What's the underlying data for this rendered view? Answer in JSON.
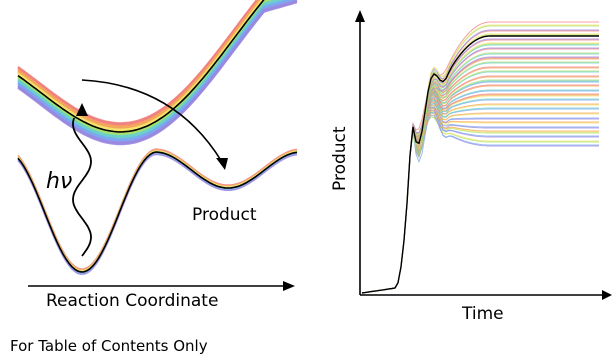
{
  "left_panel": {
    "photon_label": "hν",
    "product_label": "Product",
    "x_axis_label": "Reaction Coordinate",
    "band_colors": [
      "#f08080",
      "#f4a45a",
      "#f2e46a",
      "#a8e06c",
      "#6ad0c8",
      "#7aa8f0",
      "#9a88e0"
    ],
    "reference_line_color": "#000000"
  },
  "right_panel": {
    "y_axis_label": "Product",
    "x_axis_label": "Time",
    "trajectory_colors": [
      "#f08080",
      "#f4a45a",
      "#f2e46a",
      "#a8e06c",
      "#6ad0c8",
      "#7aa8f0",
      "#9a88e0"
    ],
    "reference_line_color": "#000000"
  },
  "footnote": "For Table of Contents Only"
}
